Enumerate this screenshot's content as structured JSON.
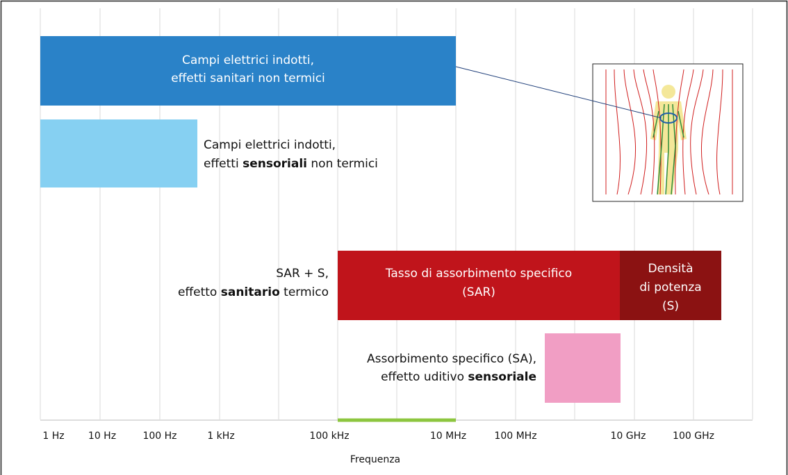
{
  "regions": {
    "induced_health": {
      "lines": [
        "Campi elettrici indotti,",
        "effetti sanitari non termici"
      ]
    },
    "induced_sensory": {
      "line1": "Campi elettrici indotti,",
      "line2": {
        "before": "effetti ",
        "bold": "sensoriali",
        "after": " non termici"
      }
    },
    "sar_s_label": {
      "line1": "SAR + S,",
      "line2": {
        "before": "effetto ",
        "bold": "sanitario",
        "after": " termico"
      }
    },
    "sar": {
      "lines": [
        "Tasso di assorbimento specifico",
        "(SAR)"
      ]
    },
    "power_density": {
      "lines": [
        "Densità",
        "di potenza",
        "(S)"
      ]
    },
    "sa_label": {
      "line1": "Assorbimento specifico (SA),",
      "line2": {
        "before": "effetto uditivo ",
        "bold": "sensoriale"
      }
    }
  },
  "axis": {
    "ticks": [
      "1 Hz",
      "10 Hz",
      "100 Hz",
      "1 kHz",
      "100 kHz",
      "10 MHz",
      "100 MHz",
      "10 GHz",
      "100 GHz"
    ],
    "title": "Frequenza"
  }
}
